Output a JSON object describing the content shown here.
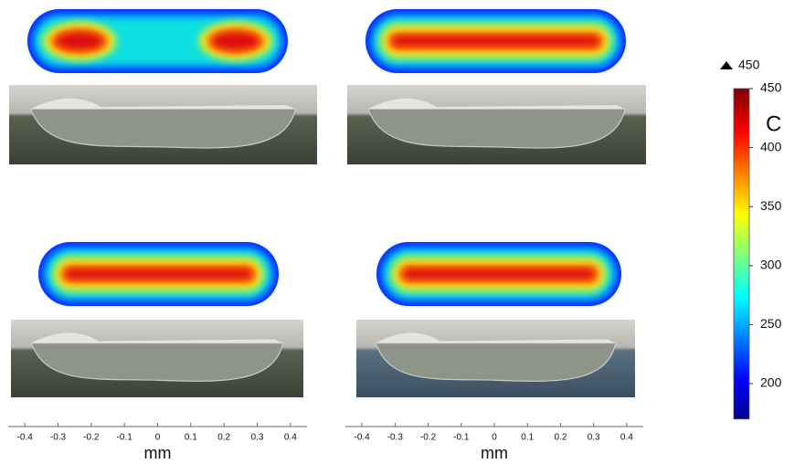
{
  "colorbar": {
    "max_label": "450",
    "unit": "C",
    "range": [
      170,
      450
    ],
    "ticks": [
      200,
      250,
      300,
      350,
      400,
      450
    ]
  },
  "axes": [
    {
      "xlim": [
        -0.45,
        0.45
      ],
      "ticks": [
        -0.4,
        -0.3,
        -0.2,
        -0.1,
        0,
        0.1,
        0.2,
        0.3,
        0.4
      ],
      "label": "mm"
    },
    {
      "xlim": [
        -0.45,
        0.45
      ],
      "ticks": [
        -0.4,
        -0.3,
        -0.2,
        -0.1,
        0,
        0.1,
        0.2,
        0.3,
        0.4
      ],
      "label": "mm"
    }
  ]
}
